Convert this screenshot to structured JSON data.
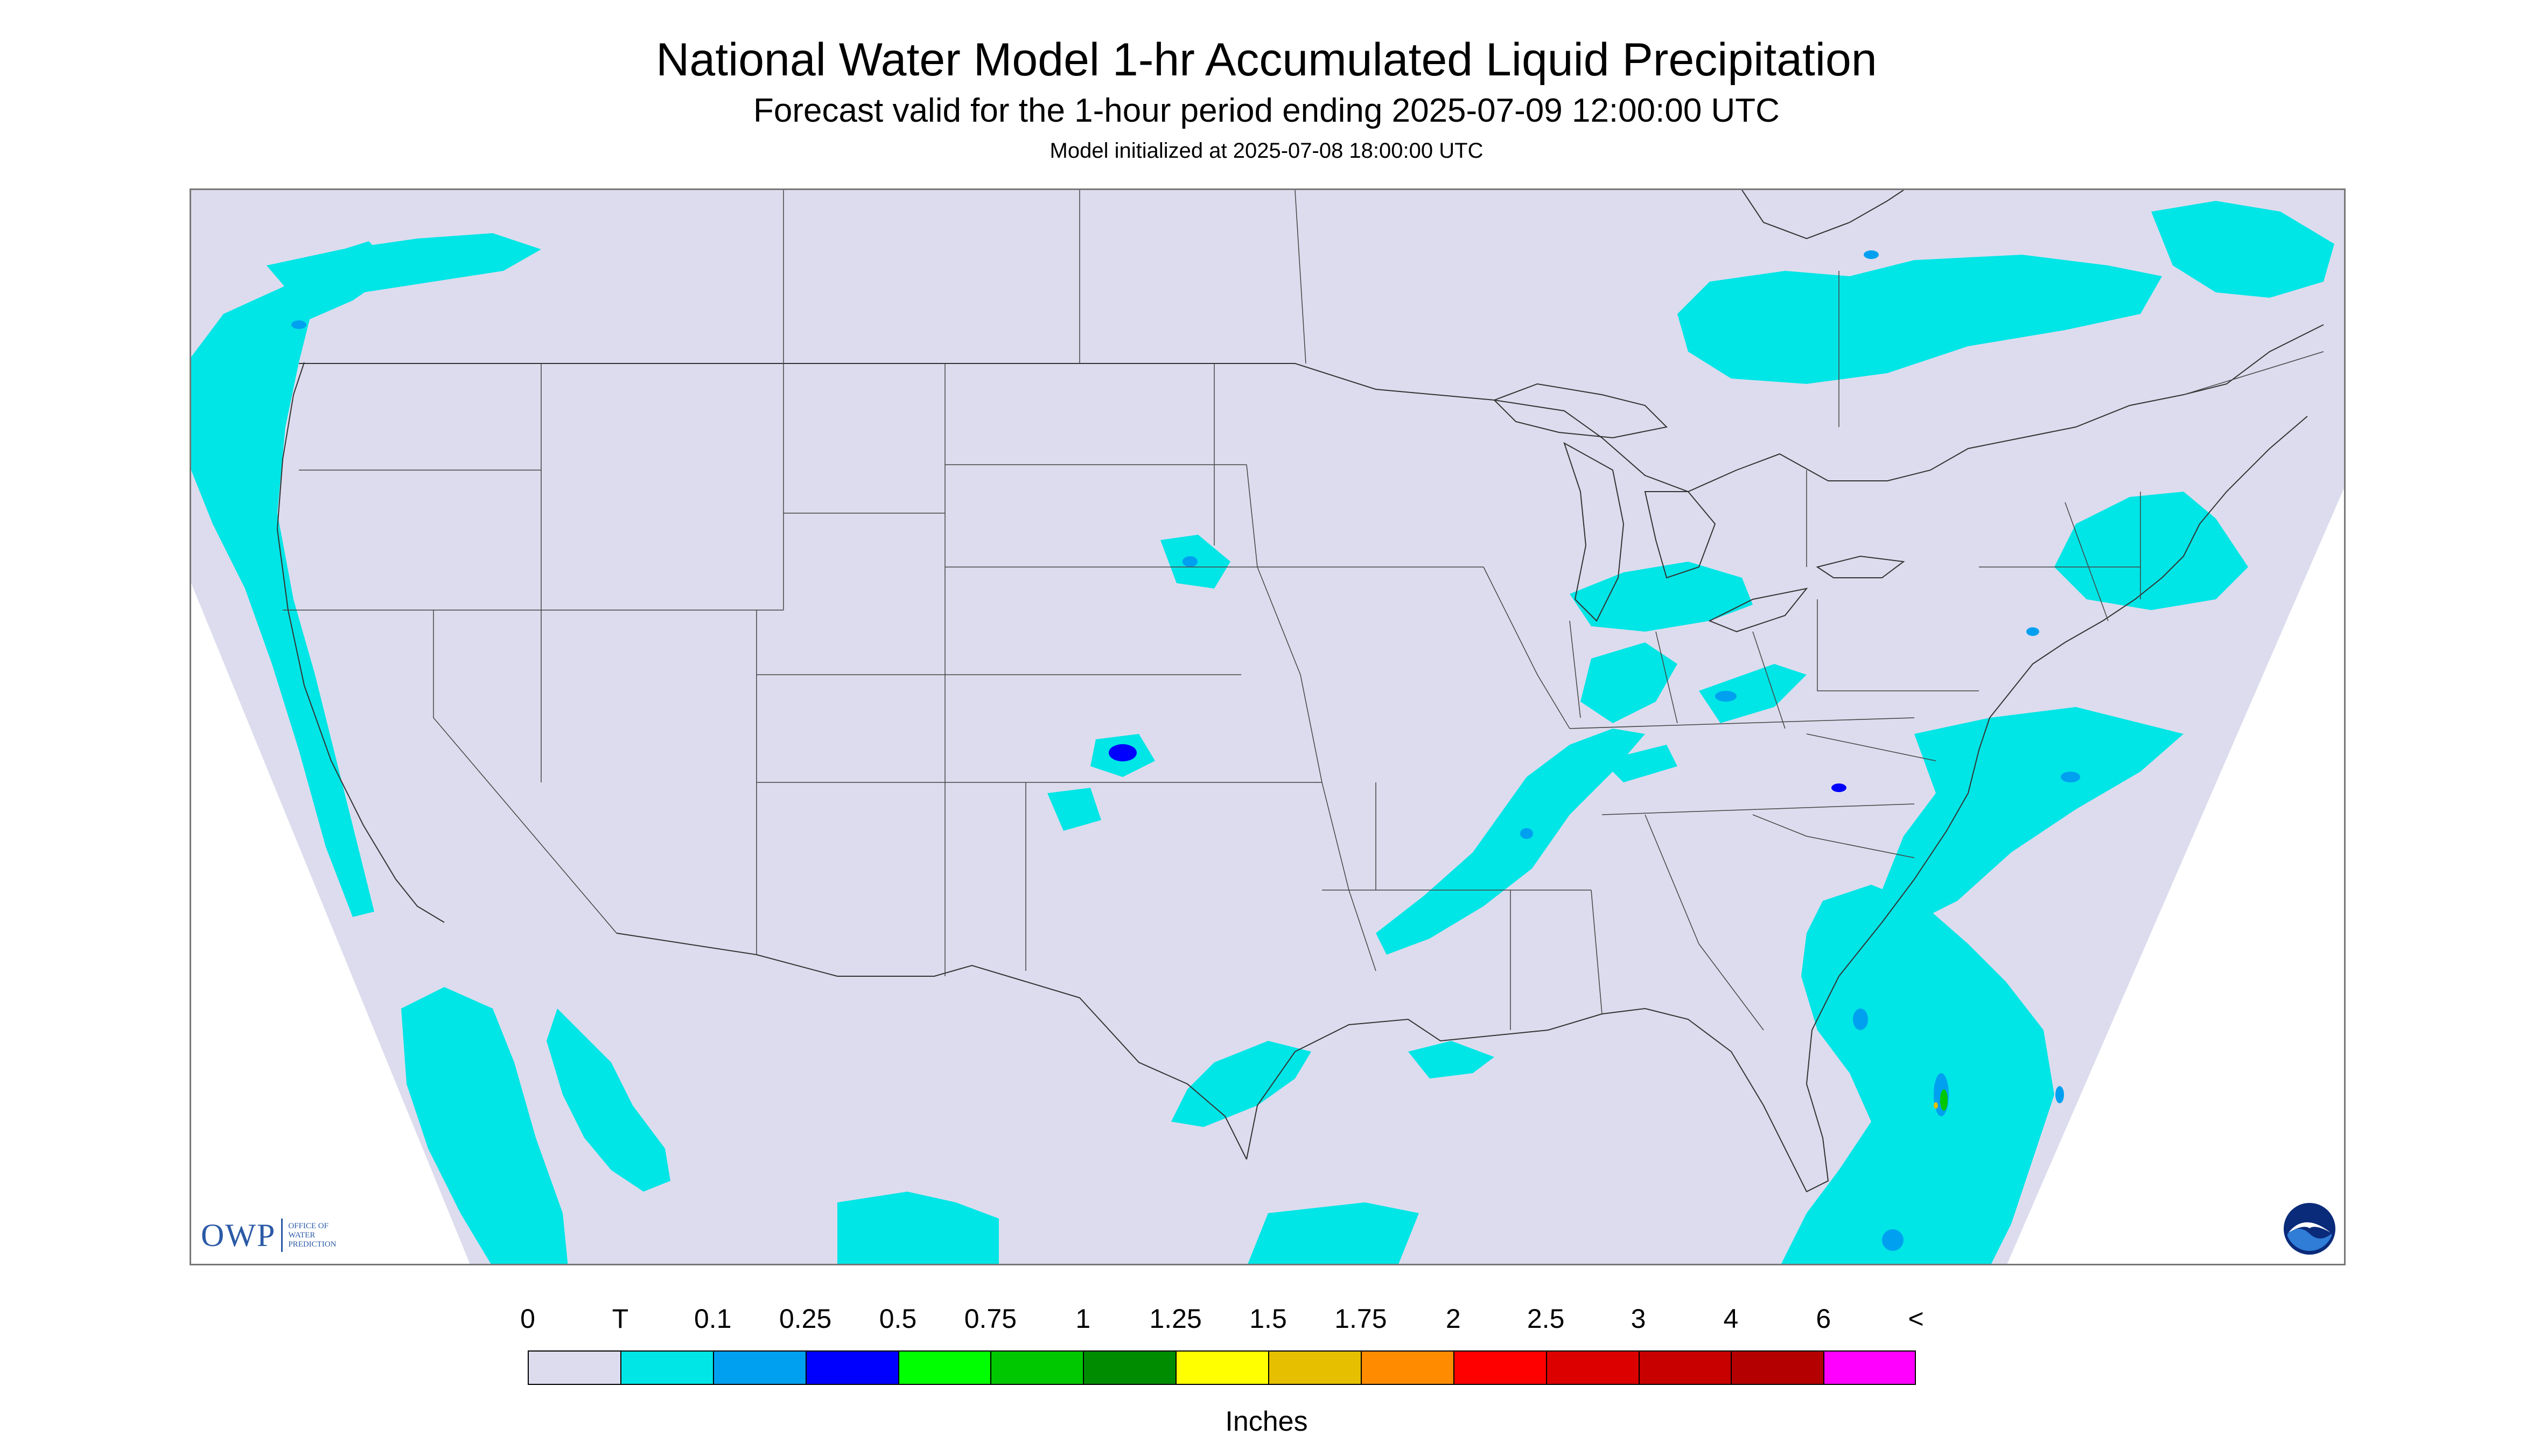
{
  "title": "National Water Model 1-hr Accumulated Liquid Precipitation",
  "subtitle": "Forecast valid for the 1-hour period ending 2025-07-09 12:00:00 UTC",
  "init_line": "Model initialized at 2025-07-08 18:00:00 UTC",
  "logos": {
    "owp_big": "OWP",
    "owp_small": [
      "OFFICE OF",
      "WATER",
      "PREDICTION"
    ],
    "noaa": "NOAA"
  },
  "colors": {
    "background": "#dcdcee",
    "boundaries": "#333333"
  },
  "legend": {
    "units": "Inches",
    "tick_labels": [
      "0",
      "T",
      "0.1",
      "0.25",
      "0.5",
      "0.75",
      "1",
      "1.25",
      "1.5",
      "1.75",
      "2",
      "2.5",
      "3",
      "4",
      "6",
      "<"
    ],
    "colors": [
      "#dcdcee",
      "#00e5e5",
      "#00a0f0",
      "#0000ff",
      "#00ff00",
      "#00c800",
      "#008c00",
      "#ffff00",
      "#e5bf00",
      "#ff8c00",
      "#ff0000",
      "#dc0000",
      "#c80000",
      "#b40000",
      "#ff00ff",
      "#9955c9"
    ]
  }
}
